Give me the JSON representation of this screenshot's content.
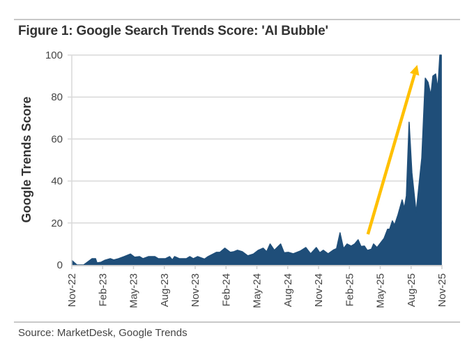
{
  "chart_data": {
    "type": "area",
    "title": "Figure 1: Google Search Trends Score: 'AI Bubble'",
    "xlabel": "",
    "ylabel": "Google Trends Score",
    "ylim": [
      0,
      100
    ],
    "yticks": [
      0,
      20,
      40,
      60,
      80,
      100
    ],
    "x_unit": "months since Nov-22",
    "xlim": [
      0,
      36
    ],
    "xtick_labels": [
      "Nov-22",
      "Feb-23",
      "May-23",
      "Aug-23",
      "Nov-23",
      "Feb-24",
      "May-24",
      "Aug-24",
      "Nov-24",
      "Feb-25",
      "May-25",
      "Aug-25",
      "Nov-25"
    ],
    "grid": "horizontal",
    "color": "#1f4e79",
    "series": [
      {
        "name": "AI Bubble",
        "x": [
          0,
          0.5,
          1.15,
          1.97,
          2.31,
          2.45,
          2.85,
          3.19,
          3.74,
          4.08,
          4.55,
          5.1,
          5.71,
          6.11,
          6.59,
          6.93,
          7.47,
          8.08,
          8.42,
          9.1,
          9.51,
          9.78,
          9.99,
          10.46,
          11.14,
          11.48,
          11.82,
          12.23,
          12.91,
          13.25,
          14.06,
          14.4,
          14.88,
          15.42,
          15.76,
          16.1,
          16.58,
          17.12,
          17.66,
          18.14,
          18.61,
          18.95,
          19.29,
          19.7,
          20.31,
          20.65,
          21.06,
          21.54,
          22.21,
          22.76,
          23.23,
          23.78,
          24.12,
          24.46,
          24.93,
          25.48,
          25.75,
          26.09,
          26.43,
          26.77,
          27.17,
          27.51,
          27.85,
          28.13,
          28.46,
          28.74,
          29.14,
          29.35,
          29.69,
          30.03,
          30.37,
          30.71,
          30.91,
          31.18,
          31.39,
          31.73,
          32.13,
          32.34,
          32.54,
          32.81,
          33.08,
          33.49,
          34.04,
          34.38,
          34.65,
          34.92,
          35.12,
          35.39,
          35.6,
          35.8,
          35.94
        ],
        "values": [
          2.2,
          0,
          0,
          3,
          3,
          1,
          1.3,
          2.2,
          3,
          2.4,
          3,
          4,
          5.2,
          3.7,
          4,
          3,
          4,
          4,
          3,
          3,
          4,
          2.4,
          4,
          3,
          3,
          4,
          3,
          4,
          2.8,
          4,
          6,
          6,
          8,
          6,
          6.3,
          7,
          6.3,
          4.4,
          5.2,
          7,
          8,
          6.3,
          10,
          7,
          10,
          5.8,
          6,
          5.3,
          6.6,
          8.3,
          5.3,
          8.3,
          5.8,
          7,
          5.3,
          7.2,
          7.8,
          15.3,
          7.8,
          10,
          9,
          10,
          12,
          8.8,
          9,
          6.9,
          7.5,
          10,
          8.3,
          10.5,
          12.7,
          17,
          17,
          21,
          19,
          24,
          31,
          27,
          33,
          68,
          44,
          25,
          51,
          89,
          87,
          81,
          90,
          91,
          84,
          100,
          100
        ]
      }
    ],
    "annotations": [
      {
        "type": "arrow",
        "color": "#ffc000",
        "from": [
          28.8,
          14.6
        ],
        "to": [
          33.6,
          95.3
        ]
      }
    ]
  },
  "source": "Source: MarketDesk, Google Trends"
}
